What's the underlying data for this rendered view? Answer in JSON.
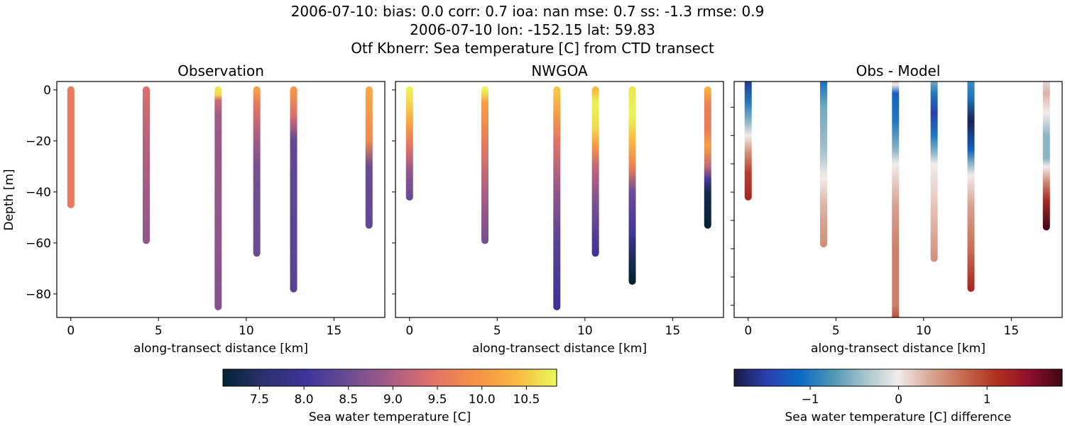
{
  "title_lines": [
    "2006-07-10: bias: 0.0  corr: 0.7  ioa: nan  mse: 0.7  ss: -1.3  rmse: 0.9",
    "2006-07-10 lon: -152.15 lat: 59.83",
    "Otf Kbnerr: Sea temperature [C] from CTD transect"
  ],
  "chart_data": [
    {
      "type": "scatter",
      "title": "Observation",
      "xlabel": "along-transect distance [km]",
      "ylabel": "Depth [m]",
      "xlim": [
        -0.8,
        17.9
      ],
      "ylim": [
        -89.2,
        3.3
      ],
      "xticks": [
        0,
        5,
        10,
        15
      ],
      "yticks": [
        0,
        -20,
        -40,
        -60,
        -80
      ],
      "ytick_labels": [
        "0",
        "−20",
        "−40",
        "−60",
        "−80"
      ],
      "colormap": "thermal",
      "columns": [
        {
          "x": 0,
          "bottom": -45,
          "profile": [
            [
              0,
              9.6
            ],
            [
              -45,
              9.6
            ]
          ]
        },
        {
          "x": 4.3,
          "bottom": -59,
          "profile": [
            [
              0,
              9.4
            ],
            [
              -20,
              9.1
            ],
            [
              -59,
              8.8
            ]
          ]
        },
        {
          "x": 8.4,
          "bottom": -85,
          "profile": [
            [
              0,
              10.7
            ],
            [
              -2,
              10.6
            ],
            [
              -4,
              9.3
            ],
            [
              -10,
              8.9
            ],
            [
              -85,
              8.7
            ]
          ]
        },
        {
          "x": 10.6,
          "bottom": -64,
          "profile": [
            [
              0,
              10.1
            ],
            [
              -5,
              9.6
            ],
            [
              -15,
              9.1
            ],
            [
              -30,
              8.6
            ],
            [
              -64,
              8.5
            ]
          ]
        },
        {
          "x": 12.7,
          "bottom": -78,
          "profile": [
            [
              0,
              10.0
            ],
            [
              -10,
              9.4
            ],
            [
              -20,
              8.4
            ],
            [
              -78,
              8.3
            ]
          ]
        },
        {
          "x": 17.0,
          "bottom": -53,
          "profile": [
            [
              0,
              10.2
            ],
            [
              -20,
              9.8
            ],
            [
              -30,
              8.5
            ],
            [
              -53,
              8.4
            ]
          ]
        }
      ]
    },
    {
      "type": "scatter",
      "title": "NWGOA",
      "xlabel": "along-transect distance [km]",
      "xlim": [
        -0.8,
        17.9
      ],
      "ylim": [
        -89.2,
        3.3
      ],
      "xticks": [
        0,
        5,
        10,
        15
      ],
      "yticks": [
        0,
        -20,
        -40,
        -60,
        -80
      ],
      "colormap": "thermal",
      "columns": [
        {
          "x": 0,
          "bottom": -42,
          "profile": [
            [
              0,
              10.8
            ],
            [
              -5,
              10.6
            ],
            [
              -15,
              10.0
            ],
            [
              -22,
              9.5
            ],
            [
              -32,
              8.8
            ],
            [
              -42,
              8.5
            ]
          ]
        },
        {
          "x": 4.3,
          "bottom": -59,
          "profile": [
            [
              0,
              10.8
            ],
            [
              -5,
              10.1
            ],
            [
              -20,
              9.6
            ],
            [
              -40,
              9.0
            ],
            [
              -59,
              8.6
            ]
          ]
        },
        {
          "x": 8.4,
          "bottom": -85,
          "profile": [
            [
              0,
              10.5
            ],
            [
              -10,
              10.0
            ],
            [
              -20,
              9.5
            ],
            [
              -40,
              8.8
            ],
            [
              -60,
              8.3
            ],
            [
              -85,
              8.0
            ]
          ]
        },
        {
          "x": 10.6,
          "bottom": -64,
          "profile": [
            [
              0,
              10.4
            ],
            [
              -5,
              10.8
            ],
            [
              -15,
              10.6
            ],
            [
              -22,
              10.0
            ],
            [
              -30,
              9.2
            ],
            [
              -45,
              8.6
            ],
            [
              -64,
              8.0
            ]
          ]
        },
        {
          "x": 12.7,
          "bottom": -75,
          "profile": [
            [
              0,
              10.7
            ],
            [
              -10,
              10.8
            ],
            [
              -20,
              10.4
            ],
            [
              -30,
              9.7
            ],
            [
              -40,
              8.5
            ],
            [
              -55,
              8.1
            ],
            [
              -65,
              7.4
            ],
            [
              -75,
              7.1
            ]
          ]
        },
        {
          "x": 17.0,
          "bottom": -53,
          "profile": [
            [
              0,
              10.3
            ],
            [
              -5,
              9.7
            ],
            [
              -15,
              9.6
            ],
            [
              -22,
              10.1
            ],
            [
              -30,
              9.2
            ],
            [
              -35,
              8.1
            ],
            [
              -40,
              7.3
            ],
            [
              -53,
              7.1
            ]
          ]
        }
      ]
    },
    {
      "type": "scatter",
      "title": "Obs - Model",
      "xlabel": "along-transect distance [km]",
      "xlim": [
        -0.8,
        17.9
      ],
      "ylim": [
        -8.43,
        -0.09
      ],
      "xticks": [
        0,
        5,
        10,
        15
      ],
      "yticks": [
        -1,
        -2,
        -3,
        -4,
        -5,
        -6,
        -7,
        -8
      ],
      "colormap": "balance",
      "columns": [
        {
          "x": 0,
          "bottom": -4.17,
          "profile": [
            [
              0,
              -1.6
            ],
            [
              -0.8,
              -1.0
            ],
            [
              -1.5,
              -0.5
            ],
            [
              -2.0,
              0
            ],
            [
              -2.6,
              0.5
            ],
            [
              -3.3,
              1.0
            ],
            [
              -4.17,
              1.2
            ]
          ]
        },
        {
          "x": 4.3,
          "bottom": -5.83,
          "profile": [
            [
              0,
              -1.1
            ],
            [
              -1.0,
              -0.6
            ],
            [
              -2.5,
              -0.4
            ],
            [
              -3.5,
              0
            ],
            [
              -4.5,
              0.3
            ],
            [
              -5.83,
              0.5
            ]
          ]
        },
        {
          "x": 8.4,
          "bottom": -8.6,
          "profile": [
            [
              0,
              0.5
            ],
            [
              -0.2,
              0
            ],
            [
              -0.5,
              -1.2
            ],
            [
              -1.5,
              -1.0
            ],
            [
              -2.5,
              -0.5
            ],
            [
              -3.0,
              0
            ],
            [
              -4.5,
              0.4
            ],
            [
              -6.0,
              0.6
            ],
            [
              -8.0,
              0.6
            ],
            [
              -8.43,
              0.9
            ]
          ]
        },
        {
          "x": 10.6,
          "bottom": -6.34,
          "profile": [
            [
              0,
              -0.5
            ],
            [
              -0.5,
              -1.0
            ],
            [
              -1.2,
              -1.5
            ],
            [
              -2.0,
              -1.0
            ],
            [
              -2.6,
              -0.5
            ],
            [
              -3.0,
              0
            ],
            [
              -4.5,
              0.2
            ],
            [
              -6.34,
              0.5
            ]
          ]
        },
        {
          "x": 12.7,
          "bottom": -7.4,
          "profile": [
            [
              0,
              -0.8
            ],
            [
              -0.6,
              -1.0
            ],
            [
              -1.5,
              -1.8
            ],
            [
              -2.5,
              -1.2
            ],
            [
              -3.0,
              -0.5
            ],
            [
              -3.4,
              0
            ],
            [
              -4.5,
              0.4
            ],
            [
              -6.0,
              0.7
            ],
            [
              -7.4,
              1.2
            ]
          ]
        },
        {
          "x": 17.0,
          "bottom": -5.23,
          "profile": [
            [
              0,
              -0.1
            ],
            [
              -0.5,
              0.3
            ],
            [
              -1.2,
              0
            ],
            [
              -2.0,
              -0.5
            ],
            [
              -2.8,
              -0.5
            ],
            [
              -3.1,
              0
            ],
            [
              -3.7,
              0.6
            ],
            [
              -4.3,
              1.2
            ],
            [
              -5.23,
              1.8
            ]
          ]
        }
      ]
    }
  ],
  "colorbars": [
    {
      "label": "Sea water temperature [C]",
      "range": [
        7.09,
        10.84
      ],
      "ticks": [
        7.5,
        8.0,
        8.5,
        9.0,
        9.5,
        10.0,
        10.5
      ],
      "tick_labels": [
        "7.5",
        "8.0",
        "8.5",
        "9.0",
        "9.5",
        "10.0",
        "10.5"
      ],
      "colormap": "thermal",
      "colors": [
        "#042333",
        "#2c3172",
        "#3e3498",
        "#6a4c93",
        "#a65c85",
        "#e0716a",
        "#f68f46",
        "#f9b641",
        "#e8fa5b"
      ]
    },
    {
      "label": "Sea water temperature [C] difference",
      "range": [
        -1.86,
        1.85
      ],
      "ticks": [
        -1,
        0,
        1
      ],
      "tick_labels": [
        "−1",
        "0",
        "1"
      ],
      "colormap": "balance",
      "colors": [
        "#181c43",
        "#2a3fb0",
        "#0c6ac6",
        "#4d96b4",
        "#a8c4cc",
        "#f1eceb",
        "#d9a594",
        "#c56a4e",
        "#b0301f",
        "#8e0f2e",
        "#3c0912"
      ]
    }
  ]
}
